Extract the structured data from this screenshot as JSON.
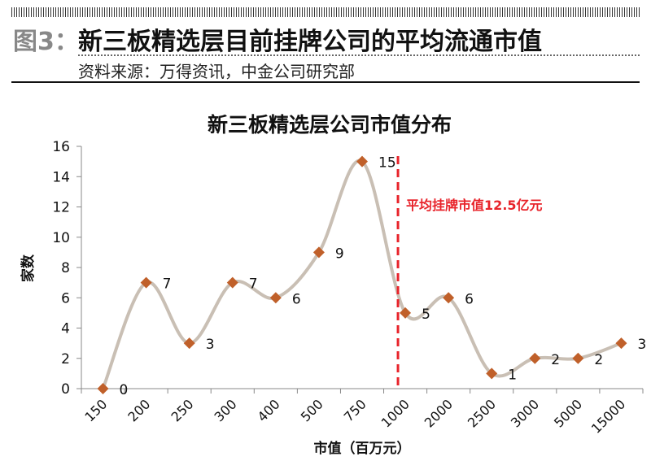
{
  "header": {
    "figure_label": "图3：",
    "title": "新三板精选层目前挂牌公司的平均流通市值",
    "source": "资料来源：万得资讯，中金公司研究部"
  },
  "chart_data": {
    "type": "line",
    "title": "新三板精选层公司市值分布",
    "xlabel": "市值（百万元）",
    "ylabel": "家数",
    "categories": [
      "150",
      "200",
      "250",
      "300",
      "400",
      "500",
      "750",
      "1000",
      "2000",
      "2500",
      "3000",
      "5000",
      "15000"
    ],
    "values": [
      0,
      7,
      3,
      7,
      6,
      9,
      15,
      5,
      6,
      1,
      2,
      2,
      3
    ],
    "ylim": [
      0,
      16
    ],
    "yticks": [
      0,
      2,
      4,
      6,
      8,
      10,
      12,
      14,
      16
    ],
    "grid": false,
    "smooth": true,
    "annotation": {
      "text": "平均挂牌市值12.5亿元",
      "value_yi_yuan": 12.5,
      "style": "red dashed vertical line"
    },
    "colors": {
      "line": "#c9bfb4",
      "marker": "#c0602a",
      "annotation": "#e8242b"
    }
  }
}
